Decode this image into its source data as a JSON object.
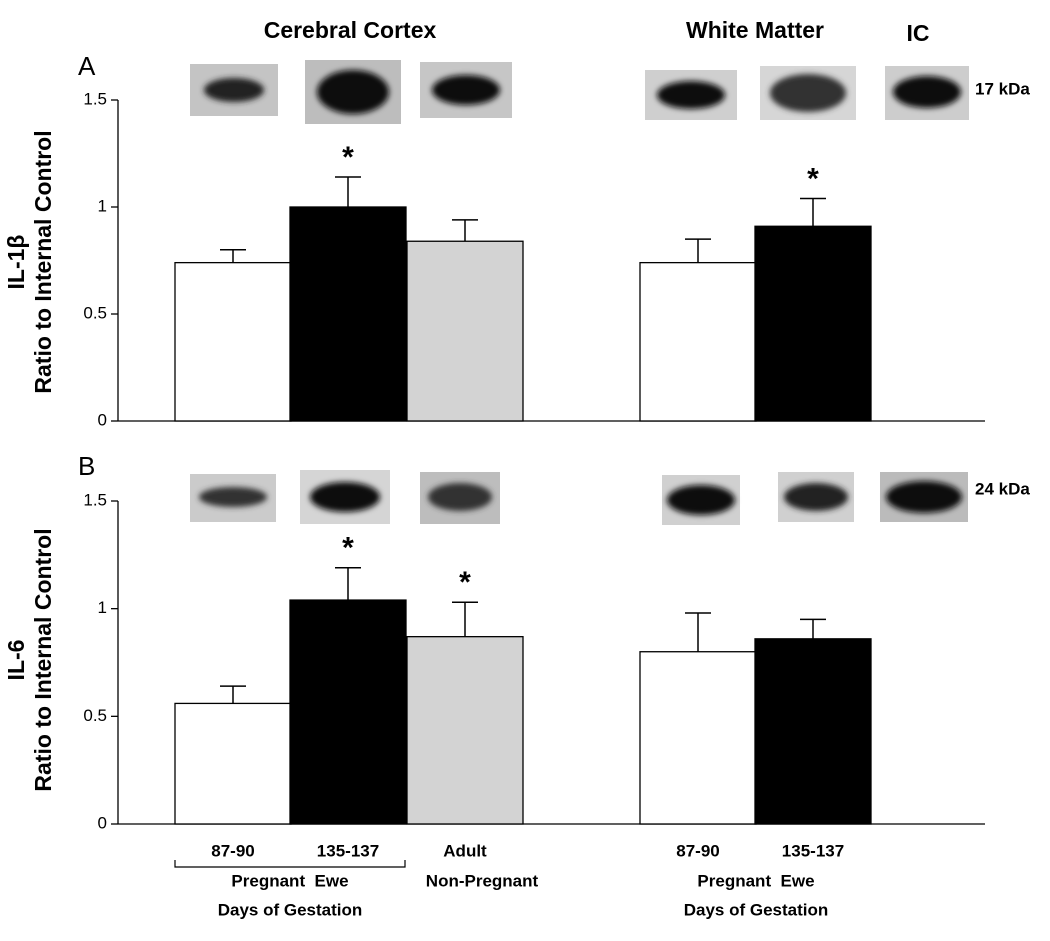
{
  "headers": {
    "cortex": "Cerebral Cortex",
    "white_matter": "White Matter",
    "ic": "IC"
  },
  "x_groups": [
    {
      "lines": [
        "Pregnant  Ewe",
        "Days of Gestation"
      ]
    },
    {
      "lines": [
        "Non-Pregnant"
      ]
    },
    {
      "lines": [
        "Pregnant  Ewe",
        "Days of Gestation"
      ]
    }
  ],
  "chart_data": [
    {
      "type": "bar",
      "panel": "A",
      "band_size": "17 kDa",
      "ylabel": [
        "IL-1β",
        "Ratio to Internal Control"
      ],
      "categories": [
        null,
        null,
        null,
        null,
        null
      ],
      "values": [
        0.74,
        1.0,
        0.84,
        0.74,
        0.91
      ],
      "errors": [
        0.06,
        0.14,
        0.1,
        0.11,
        0.13
      ],
      "significance": [
        null,
        "*",
        null,
        null,
        "*"
      ],
      "colors": [
        "#ffffff",
        "#000000",
        "#d3d3d3",
        "#ffffff",
        "#000000"
      ],
      "ylim": [
        0,
        1.5
      ],
      "yticks": [
        0,
        0.5,
        1,
        1.5
      ]
    },
    {
      "type": "bar",
      "panel": "B",
      "band_size": "24 kDa",
      "ylabel": [
        "IL-6",
        "Ratio to Internal Control"
      ],
      "categories": [
        "87-90",
        "135-137",
        "Adult",
        "87-90",
        "135-137"
      ],
      "values": [
        0.56,
        1.04,
        0.87,
        0.8,
        0.86
      ],
      "errors": [
        0.08,
        0.15,
        0.16,
        0.18,
        0.09
      ],
      "significance": [
        null,
        "*",
        "*",
        null,
        null
      ],
      "colors": [
        "#ffffff",
        "#000000",
        "#d3d3d3",
        "#ffffff",
        "#000000"
      ],
      "ylim": [
        0,
        1.5
      ],
      "yticks": [
        0,
        0.5,
        1,
        1.5
      ]
    }
  ]
}
